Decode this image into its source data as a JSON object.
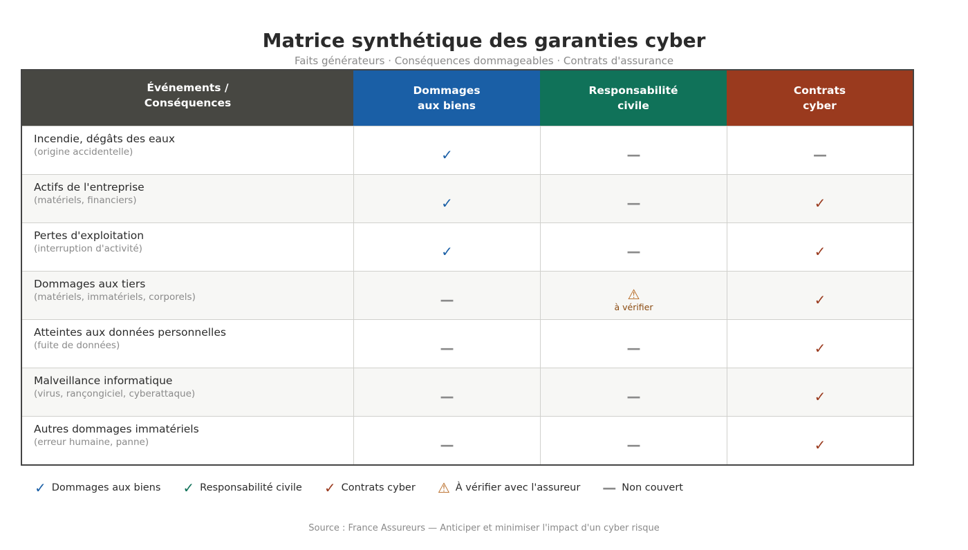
{
  "title": "Matrice synthétique des garanties cyber",
  "subtitle": "Faits générateurs · Conséquences dommageables · Contrats d'assurance",
  "table": {
    "header": [
      [
        "Événements /",
        "Conséquences"
      ],
      [
        "Dommages",
        "aux biens"
      ],
      [
        "Responsabilité",
        "civile"
      ],
      [
        "Contrats",
        "cyber"
      ]
    ],
    "rows": [
      {
        "label": "Incendie, dégâts des eaux",
        "note": "(origine accidentelle)",
        "cells": [
          "✓",
          "—",
          "—"
        ]
      },
      {
        "label": "Actifs de l'entreprise",
        "note": "(matériels, financiers)",
        "cells": [
          "✓",
          "—",
          "✓"
        ]
      },
      {
        "label": "Pertes d'exploitation",
        "note": "(interruption d'activité)",
        "cells": [
          "✓",
          "—",
          "✓"
        ]
      },
      {
        "label": "Dommages aux tiers",
        "note": "(matériels, immatériels, corporels)",
        "cells": [
          "—",
          {
            "symbol": "⚠",
            "label": "à vérifier"
          },
          "✓"
        ]
      },
      {
        "label": "Atteintes aux données personnelles",
        "note": "(fuite de données)",
        "cells": [
          "—",
          "—",
          "✓"
        ]
      },
      {
        "label": "Malveillance informatique",
        "note": "(virus, rançongiciel, cyberattaque)",
        "cells": [
          "—",
          "—",
          "✓"
        ]
      },
      {
        "label": "Autres dommages immatériels",
        "note": "(erreur humaine, panne)",
        "cells": [
          "—",
          "—",
          "✓"
        ]
      }
    ]
  },
  "legend": [
    {
      "symbol": "✓",
      "label": "Dommages aux biens"
    },
    {
      "symbol": "✓",
      "label": "Responsabilité civile"
    },
    {
      "symbol": "✓",
      "label": "Contrats cyber"
    },
    {
      "symbol": "⚠",
      "label": "À vérifier avec l'assureur"
    },
    {
      "symbol": "—",
      "label": "Non couvert"
    }
  ],
  "source": "Source : France Assureurs — Anticiper et minimiser l'impact d'un cyber risque"
}
